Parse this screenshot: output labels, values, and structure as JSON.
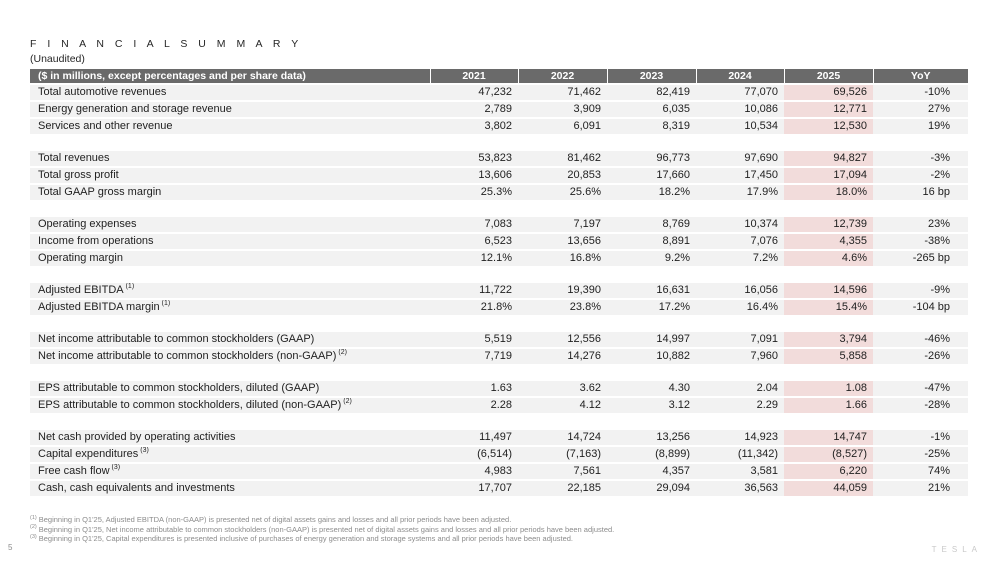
{
  "page": {
    "title": "F I N A N C I A L   S U M M A R Y",
    "subtitle": "(Unaudited)",
    "page_number": "5",
    "brand": "TESLA",
    "accent_color": "#f2dcdb",
    "header_color": "#6a6a6a",
    "row_color": "#f2f2f2"
  },
  "table": {
    "header": {
      "label": "($ in millions, except percentages and per share data)",
      "columns": [
        "2021",
        "2022",
        "2023",
        "2024",
        "2025",
        "YoY"
      ]
    },
    "groups": [
      {
        "rows": [
          {
            "label": "Total automotive revenues",
            "sup": "",
            "values": [
              "47,232",
              "71,462",
              "82,419",
              "77,070",
              "69,526"
            ],
            "yoy": "-10%"
          },
          {
            "label": "Energy generation and storage revenue",
            "sup": "",
            "values": [
              "2,789",
              "3,909",
              "6,035",
              "10,086",
              "12,771"
            ],
            "yoy": "27%"
          },
          {
            "label": "Services and other revenue",
            "sup": "",
            "values": [
              "3,802",
              "6,091",
              "8,319",
              "10,534",
              "12,530"
            ],
            "yoy": "19%"
          }
        ]
      },
      {
        "rows": [
          {
            "label": "Total revenues",
            "sup": "",
            "values": [
              "53,823",
              "81,462",
              "96,773",
              "97,690",
              "94,827"
            ],
            "yoy": "-3%"
          },
          {
            "label": "Total gross profit",
            "sup": "",
            "values": [
              "13,606",
              "20,853",
              "17,660",
              "17,450",
              "17,094"
            ],
            "yoy": "-2%"
          },
          {
            "label": "Total GAAP gross margin",
            "sup": "",
            "values": [
              "25.3%",
              "25.6%",
              "18.2%",
              "17.9%",
              "18.0%"
            ],
            "yoy": "16 bp"
          }
        ]
      },
      {
        "rows": [
          {
            "label": "Operating expenses",
            "sup": "",
            "values": [
              "7,083",
              "7,197",
              "8,769",
              "10,374",
              "12,739"
            ],
            "yoy": "23%"
          },
          {
            "label": "Income from operations",
            "sup": "",
            "values": [
              "6,523",
              "13,656",
              "8,891",
              "7,076",
              "4,355"
            ],
            "yoy": "-38%"
          },
          {
            "label": "Operating margin",
            "sup": "",
            "values": [
              "12.1%",
              "16.8%",
              "9.2%",
              "7.2%",
              "4.6%"
            ],
            "yoy": "-265 bp"
          }
        ]
      },
      {
        "rows": [
          {
            "label": "Adjusted EBITDA",
            "sup": "(1)",
            "values": [
              "11,722",
              "19,390",
              "16,631",
              "16,056",
              "14,596"
            ],
            "yoy": "-9%"
          },
          {
            "label": "Adjusted EBITDA margin",
            "sup": "(1)",
            "values": [
              "21.8%",
              "23.8%",
              "17.2%",
              "16.4%",
              "15.4%"
            ],
            "yoy": "-104 bp"
          }
        ]
      },
      {
        "rows": [
          {
            "label": "Net income attributable to common stockholders (GAAP)",
            "sup": "",
            "values": [
              "5,519",
              "12,556",
              "14,997",
              "7,091",
              "3,794"
            ],
            "yoy": "-46%"
          },
          {
            "label": "Net income attributable to common stockholders (non-GAAP)",
            "sup": "(2)",
            "values": [
              "7,719",
              "14,276",
              "10,882",
              "7,960",
              "5,858"
            ],
            "yoy": "-26%"
          }
        ]
      },
      {
        "rows": [
          {
            "label": "EPS attributable to common stockholders, diluted (GAAP)",
            "sup": "",
            "values": [
              "1.63",
              "3.62",
              "4.30",
              "2.04",
              "1.08"
            ],
            "yoy": "-47%"
          },
          {
            "label": "EPS attributable to common stockholders, diluted (non-GAAP)",
            "sup": "(2)",
            "values": [
              "2.28",
              "4.12",
              "3.12",
              "2.29",
              "1.66"
            ],
            "yoy": "-28%"
          }
        ]
      },
      {
        "rows": [
          {
            "label": "Net cash provided by operating activities",
            "sup": "",
            "values": [
              "11,497",
              "14,724",
              "13,256",
              "14,923",
              "14,747"
            ],
            "yoy": "-1%"
          },
          {
            "label": "Capital expenditures",
            "sup": "(3)",
            "values": [
              "(6,514)",
              "(7,163)",
              "(8,899)",
              "(11,342)",
              "(8,527)"
            ],
            "yoy": "-25%"
          },
          {
            "label": "Free cash flow",
            "sup": "(3)",
            "values": [
              "4,983",
              "7,561",
              "4,357",
              "3,581",
              "6,220"
            ],
            "yoy": "74%"
          },
          {
            "label": "Cash, cash equivalents and investments",
            "sup": "",
            "values": [
              "17,707",
              "22,185",
              "29,094",
              "36,563",
              "44,059"
            ],
            "yoy": "21%"
          }
        ]
      }
    ]
  },
  "footnotes": [
    {
      "marker": "(1)",
      "text": "Beginning in Q1'25, Adjusted EBITDA (non-GAAP) is presented net of digital assets gains and losses and all prior periods have been adjusted."
    },
    {
      "marker": "(2)",
      "text": "Beginning in Q1'25, Net income attributable to common stockholders (non-GAAP) is presented net of digital assets gains and losses and all prior periods have been adjusted."
    },
    {
      "marker": "(3)",
      "text": "Beginning in Q1'25, Capital expenditures is presented inclusive of purchases of energy generation and storage systems and all prior periods have been adjusted."
    }
  ]
}
